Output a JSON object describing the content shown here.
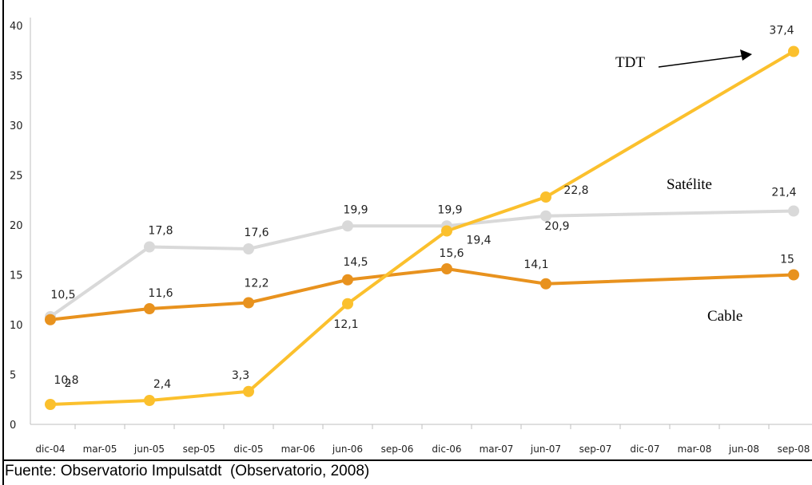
{
  "chart_data": {
    "type": "line",
    "ylim": [
      0,
      40
    ],
    "yticks": [
      "0",
      "5",
      "10",
      "15",
      "20",
      "25",
      "30",
      "35",
      "40"
    ],
    "x_labels": [
      "dic-04",
      "mar-05",
      "jun-05",
      "sep-05",
      "dic-05",
      "mar-06",
      "jun-06",
      "sep-06",
      "dic-06",
      "mar-07",
      "jun-07",
      "sep-07",
      "dic-07",
      "mar-08",
      "jun-08",
      "sep-08"
    ],
    "grid": false,
    "series": [
      {
        "name": "TDT",
        "color": "#FBC02D",
        "points": [
          {
            "x": "dic-04",
            "y": 2,
            "label": "2"
          },
          {
            "x": "jun-05",
            "y": 2.4,
            "label": "2,4"
          },
          {
            "x": "dic-05",
            "y": 3.3,
            "label": "3,3"
          },
          {
            "x": "jun-06",
            "y": 12.1,
            "label": "12,1"
          },
          {
            "x": "dic-06",
            "y": 19.4,
            "label": "19,4"
          },
          {
            "x": "jun-07",
            "y": 22.8,
            "label": "22,8"
          },
          {
            "x": "sep-08",
            "y": 37.4,
            "label": "37,4"
          }
        ]
      },
      {
        "name": "Satélite",
        "color": "#D9D9D9",
        "points": [
          {
            "x": "dic-04",
            "y": 10.8,
            "label": "10,8"
          },
          {
            "x": "jun-05",
            "y": 17.8,
            "label": "17,8"
          },
          {
            "x": "dic-05",
            "y": 17.6,
            "label": "17,6"
          },
          {
            "x": "jun-06",
            "y": 19.9,
            "label": "19,9"
          },
          {
            "x": "dic-06",
            "y": 19.9,
            "label": "19,9"
          },
          {
            "x": "jun-07",
            "y": 20.9,
            "label": "20,9"
          },
          {
            "x": "sep-08",
            "y": 21.4,
            "label": "21,4"
          }
        ]
      },
      {
        "name": "Cable",
        "color": "#E8921E",
        "points": [
          {
            "x": "dic-04",
            "y": 10.5,
            "label": "10,5"
          },
          {
            "x": "jun-05",
            "y": 11.6,
            "label": "11,6"
          },
          {
            "x": "dic-05",
            "y": 12.2,
            "label": "12,2"
          },
          {
            "x": "jun-06",
            "y": 14.5,
            "label": "14,5"
          },
          {
            "x": "dic-06",
            "y": 15.6,
            "label": "15,6"
          },
          {
            "x": "jun-07",
            "y": 14.1,
            "label": "14,1"
          },
          {
            "x": "sep-08",
            "y": 15,
            "label": "15"
          }
        ]
      }
    ],
    "annotations": {
      "tdt": "TDT",
      "satelite": "Satélite",
      "cable": "Cable"
    }
  },
  "caption": "Fuente: Observatorio Impulsatdt  (Observatorio, 2008)"
}
